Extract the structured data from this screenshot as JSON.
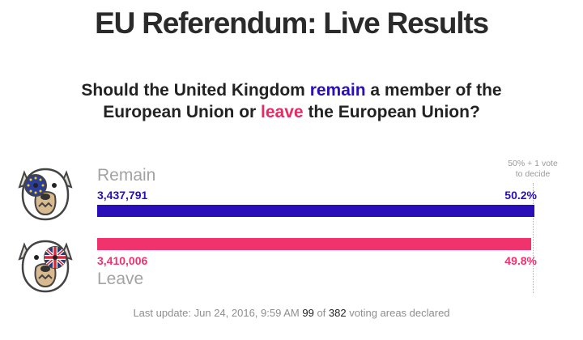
{
  "title": "EU Referendum: Live Results",
  "question": {
    "part1": "Should the United Kingdom ",
    "remain_word": "remain",
    "part2": " a member of the",
    "part3": "European Union or ",
    "leave_word": "leave",
    "part4": " the European Union?"
  },
  "threshold": {
    "line1": "50% + 1 vote",
    "line2": "to decide"
  },
  "remain": {
    "label": "Remain",
    "count": "3,437,791",
    "percent": "50.2%",
    "share": 0.502,
    "color": "#2a0fb8"
  },
  "leave": {
    "label": "Leave",
    "count": "3,410,006",
    "percent": "49.8%",
    "share": 0.498,
    "color": "#f0336d"
  },
  "icons": {
    "remain_avatar": "bulldog-eu-flag-icon",
    "leave_avatar": "bulldog-union-jack-icon"
  },
  "footer": {
    "update_text": "Last update: Jun 24, 2016, 9:59 AM",
    "declared": "99",
    "of": "of",
    "total": "382",
    "suffix": "voting areas declared"
  }
}
